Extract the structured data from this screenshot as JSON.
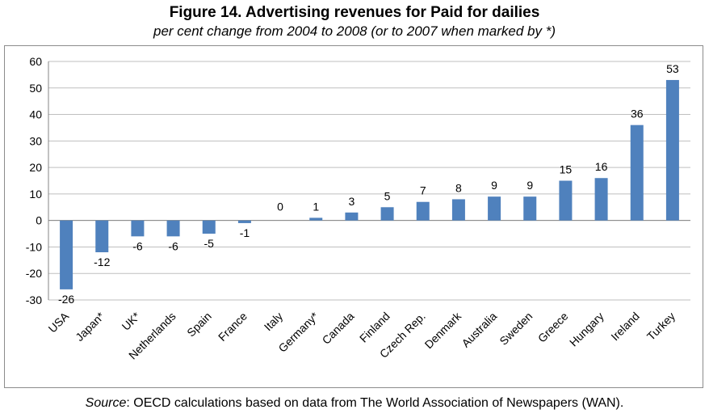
{
  "chart_data": {
    "type": "bar",
    "title": "Figure 14. Advertising revenues for Paid for dailies",
    "subtitle": "per cent change from 2004 to 2008 (or to 2007 when marked by *)",
    "xlabel": "",
    "ylabel": "",
    "ylim": [
      -30,
      60
    ],
    "yticks": [
      60,
      50,
      40,
      30,
      20,
      10,
      0,
      -10,
      -20,
      -30
    ],
    "grid": true,
    "categories": [
      "USA",
      "Japan*",
      "UK*",
      "Netherlands",
      "Spain",
      "France",
      "Italy",
      "Germany*",
      "Canada",
      "Finland",
      "Czech Rep.",
      "Denmark",
      "Australia",
      "Sweden",
      "Greece",
      "Hungary",
      "Ireland",
      "Turkey"
    ],
    "values": [
      -26,
      -12,
      -6,
      -6,
      -5,
      -1,
      0,
      1,
      3,
      5,
      7,
      8,
      9,
      9,
      15,
      16,
      36,
      53
    ],
    "data_labels": [
      "-26",
      "-12",
      "-6",
      "-6",
      "-5",
      "-1",
      "0",
      "1",
      "3",
      "5",
      "7",
      "8",
      "9",
      "9",
      "15",
      "16",
      "36",
      "53"
    ],
    "bar_color": "#4f81bd"
  },
  "source": {
    "prefix": "Source",
    "text": ": OECD calculations based on data from The World Association of Newspapers (WAN)."
  }
}
